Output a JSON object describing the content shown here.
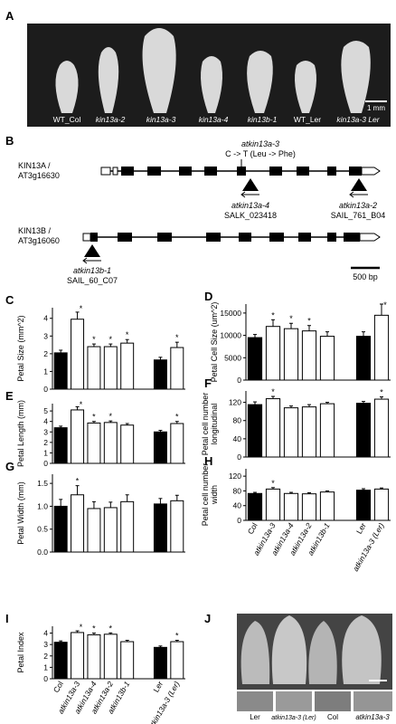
{
  "figure_a": {
    "panel_label": "A",
    "labels": [
      "WT_Col",
      "kin13a-2",
      "kin13a-3",
      "kin13a-4",
      "kin13b-1",
      "WT_Ler",
      "kin13a-3 Ler"
    ],
    "scale": "1 mm"
  },
  "figure_b": {
    "panel_label": "B",
    "gene_a": {
      "name": [
        "KIN13A /",
        "AT3g16630"
      ],
      "point_allele": "atkin13a-3",
      "point_change": "C -> T (Leu -> Phe)",
      "insertions": [
        {
          "allele": "atkin13a-4",
          "line": "SALK_023418"
        },
        {
          "allele": "atkin13a-2",
          "line": "SAIL_761_B04"
        }
      ]
    },
    "gene_b": {
      "name": [
        "KIN13B /",
        "AT3g16060"
      ],
      "insertions": [
        {
          "allele": "atkin13b-1",
          "line": "SAIL_60_C07"
        }
      ]
    },
    "scale": "500 bp"
  },
  "figure_j": {
    "panel_label": "J",
    "labels": [
      "Ler",
      "atkin13a-3 (Ler)",
      "Col",
      "atkin13a-3"
    ]
  },
  "chart_data": [
    {
      "type": "bar",
      "panel_label": "C",
      "ylabel": [
        "Petal Size (mm^2)"
      ],
      "ylim": [
        0,
        4.6
      ],
      "yticks": [
        0,
        1,
        2,
        3,
        4
      ],
      "values": [
        2.05,
        3.95,
        2.4,
        2.4,
        2.6,
        null,
        1.65,
        2.35
      ],
      "errors": [
        0.15,
        0.4,
        0.15,
        0.15,
        0.2,
        null,
        0.15,
        0.3
      ],
      "colors": [
        "#000000",
        "#ffffff",
        "#ffffff",
        "#ffffff",
        "#ffffff",
        null,
        "#000000",
        "#ffffff"
      ],
      "significant": [
        false,
        true,
        true,
        true,
        true,
        false,
        false,
        true
      ],
      "significance_label": "*"
    },
    {
      "type": "bar",
      "panel_label": "E",
      "ylabel": [
        "Petal Length (mm)"
      ],
      "ylim": [
        0,
        5.7
      ],
      "yticks": [
        0,
        1,
        2,
        3,
        4,
        5
      ],
      "values": [
        3.4,
        5.1,
        3.85,
        3.9,
        3.65,
        null,
        3.0,
        3.8
      ],
      "errors": [
        0.15,
        0.3,
        0.15,
        0.15,
        0.15,
        null,
        0.15,
        0.2
      ],
      "colors": [
        "#000000",
        "#ffffff",
        "#ffffff",
        "#ffffff",
        "#ffffff",
        null,
        "#000000",
        "#ffffff"
      ],
      "significant": [
        false,
        true,
        true,
        true,
        false,
        false,
        false,
        true
      ],
      "significance_label": "*"
    },
    {
      "type": "bar",
      "panel_label": "G",
      "ylabel": [
        "Petal Width (mm)"
      ],
      "ylim": [
        0,
        1.7
      ],
      "yticks": [
        {
          "value": 0,
          "label": "0.0"
        },
        {
          "value": 0.5,
          "label": "0.5"
        },
        {
          "value": 1,
          "label": "1.0"
        },
        {
          "value": 1.5,
          "label": "1.5"
        }
      ],
      "values": [
        1.0,
        1.25,
        0.95,
        0.97,
        1.1,
        null,
        1.05,
        1.12
      ],
      "errors": [
        0.15,
        0.2,
        0.15,
        0.12,
        0.15,
        null,
        0.12,
        0.12
      ],
      "colors": [
        "#000000",
        "#ffffff",
        "#ffffff",
        "#ffffff",
        "#ffffff",
        null,
        "#000000",
        "#ffffff"
      ],
      "significant": [
        false,
        true,
        false,
        false,
        false,
        false,
        false,
        false
      ],
      "significance_label": "*"
    },
    {
      "type": "bar",
      "panel_label": "I",
      "ylabel": [
        "Petal Index"
      ],
      "ylim": [
        0,
        4.6
      ],
      "yticks": [
        0,
        1,
        2,
        3,
        4
      ],
      "categories": [
        "Col",
        "atkin13a-3",
        "atkin13a-4",
        "atkin13a-2",
        "atkin13b-1",
        null,
        "Ler",
        "atkin13a-3 (Ler)"
      ],
      "values": [
        3.2,
        4.05,
        3.85,
        3.9,
        3.25,
        null,
        2.75,
        3.25
      ],
      "errors": [
        0.12,
        0.15,
        0.15,
        0.12,
        0.12,
        null,
        0.12,
        0.12
      ],
      "colors": [
        "#000000",
        "#ffffff",
        "#ffffff",
        "#ffffff",
        "#ffffff",
        null,
        "#000000",
        "#ffffff"
      ],
      "significant": [
        false,
        true,
        true,
        true,
        false,
        false,
        false,
        true
      ],
      "significance_label": "*"
    },
    {
      "type": "bar",
      "panel_label": "D",
      "ylabel": [
        "Petal Cell Size (um^2)"
      ],
      "ylim": [
        0,
        17000
      ],
      "yticks": [
        0,
        5000,
        10000,
        15000
      ],
      "values": [
        9500,
        12000,
        11500,
        11000,
        9800,
        null,
        9800,
        14500
      ],
      "errors": [
        700,
        1500,
        1200,
        1200,
        1000,
        null,
        1000,
        2500
      ],
      "colors": [
        "#000000",
        "#ffffff",
        "#ffffff",
        "#ffffff",
        "#ffffff",
        null,
        "#000000",
        "#ffffff"
      ],
      "significant": [
        false,
        true,
        true,
        true,
        false,
        false,
        false,
        true
      ],
      "significance_label": "*"
    },
    {
      "type": "bar",
      "panel_label": "F",
      "ylabel": [
        "Petal cell number",
        "longitudinal"
      ],
      "ylim": [
        0,
        145
      ],
      "yticks": [
        0,
        40,
        80,
        120
      ],
      "values": [
        115,
        128,
        108,
        110,
        117,
        null,
        118,
        127
      ],
      "errors": [
        6,
        5,
        4,
        5,
        3,
        null,
        4,
        5
      ],
      "colors": [
        "#000000",
        "#ffffff",
        "#ffffff",
        "#ffffff",
        "#ffffff",
        null,
        "#000000",
        "#ffffff"
      ],
      "significant": [
        false,
        true,
        false,
        false,
        false,
        false,
        false,
        true
      ],
      "significance_label": "*"
    },
    {
      "type": "bar",
      "panel_label": "H",
      "ylabel": [
        "Petal cell number",
        "width"
      ],
      "ylim": [
        0,
        140
      ],
      "yticks": [
        0,
        40,
        80,
        120
      ],
      "categories": [
        "Col",
        "atkin13a-3",
        "atkin13a-4",
        "atkin13a-2",
        "atkin13b-1",
        null,
        "Ler",
        "atkin13a-3 (Ler)"
      ],
      "values": [
        73,
        85,
        73,
        72,
        77,
        null,
        82,
        85
      ],
      "errors": [
        3,
        4,
        3,
        3,
        3,
        null,
        4,
        3
      ],
      "colors": [
        "#000000",
        "#ffffff",
        "#ffffff",
        "#ffffff",
        "#ffffff",
        null,
        "#000000",
        "#ffffff"
      ],
      "significant": [
        false,
        true,
        false,
        false,
        false,
        false,
        false,
        false
      ],
      "significance_label": "*"
    }
  ]
}
